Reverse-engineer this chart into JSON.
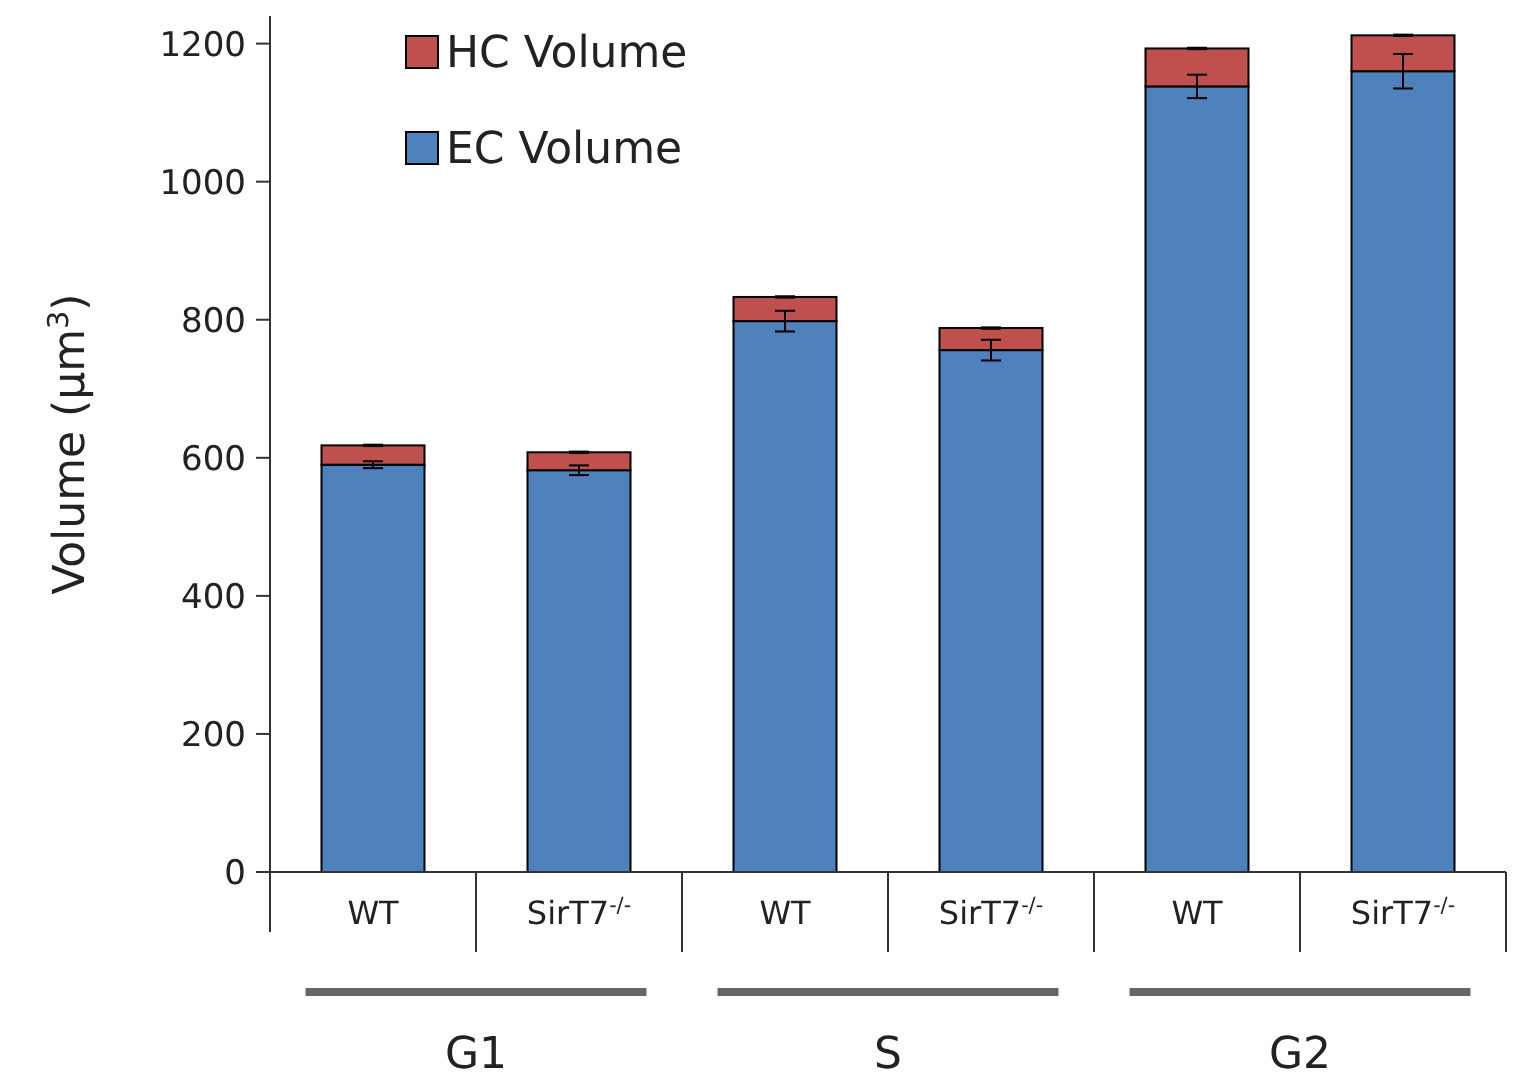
{
  "chart_data": {
    "type": "bar",
    "stacked": true,
    "ylabel": "Volume (µm$^{3}$)",
    "categories": [
      "WT",
      "SirT7$^{-/-}$",
      "WT",
      "SirT7$^{-/-}$",
      "WT",
      "SirT7$^{-/-}$"
    ],
    "series": [
      {
        "name": "EC Volume",
        "color": "#4f81bd",
        "values": [
          590,
          582,
          798,
          756,
          1138,
          1160
        ],
        "errors": [
          5,
          7,
          15,
          15,
          17,
          25
        ]
      },
      {
        "name": "HC Volume",
        "color": "#c0504d",
        "values": [
          28,
          26,
          35,
          32,
          55,
          52
        ],
        "errors": [
          1,
          1,
          1,
          1,
          1,
          1
        ]
      }
    ],
    "annotations": [
      "G1",
      "S",
      "G2"
    ],
    "ylim": [
      0,
      1240
    ],
    "yticks": [
      0,
      200,
      400,
      600,
      800,
      1000,
      1200
    ],
    "grid": false,
    "legend": "top left"
  }
}
